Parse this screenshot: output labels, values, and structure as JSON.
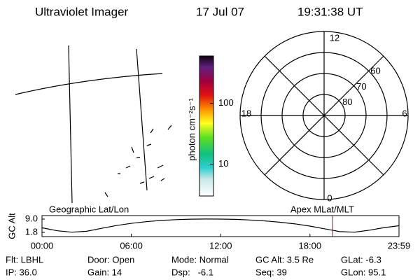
{
  "header": {
    "title": "Ultraviolet Imager",
    "date": "17 Jul 07",
    "time": "19:31:38 UT"
  },
  "map_label": "Geographic Lat/Lon",
  "colorbar": {
    "label": "photon cm⁻²s⁻¹",
    "log": true,
    "lim": [
      3,
      600
    ],
    "ticks": [
      10,
      100
    ]
  },
  "polar": {
    "label": "Apex MLat/MLT",
    "mlt_labels": [
      "12",
      "18",
      "6",
      "0"
    ],
    "lat_labels": [
      60,
      70,
      80
    ]
  },
  "chart_data": {
    "type": "line",
    "ylabel": "GC Alt",
    "x": [
      0,
      1,
      2,
      3,
      4,
      5,
      6,
      7,
      8,
      9,
      10,
      11,
      12,
      13,
      14,
      15,
      16,
      17,
      18,
      19,
      20,
      21,
      22,
      23,
      23.98
    ],
    "values": [
      4.3,
      2.7,
      1.9,
      2.4,
      4.0,
      5.5,
      6.7,
      7.6,
      8.3,
      8.7,
      8.95,
      9.05,
      9.0,
      8.85,
      8.5,
      8.0,
      7.3,
      6.4,
      5.2,
      3.7,
      2.2,
      1.9,
      3.0,
      4.4,
      5.4
    ],
    "color": "#000000",
    "current_time": 19.53,
    "current_color": "#cc0000",
    "xlim": [
      0,
      23.98
    ],
    "xticks": [
      {
        "value": 0,
        "label": "00:00"
      },
      {
        "value": 6,
        "label": "06:00"
      },
      {
        "value": 12,
        "label": "12:00"
      },
      {
        "value": 18,
        "label": "18:00"
      },
      {
        "value": 23.98,
        "label": "23:59"
      }
    ],
    "ylim": [
      -0.5,
      10.9
    ],
    "yticks": [
      1.8,
      {
        "value": 9,
        "label": "9.0"
      }
    ]
  },
  "footer": {
    "rows": [
      [
        "Flt: LBHL",
        "Door: Open",
        "Mode: Normal",
        "GC Alt: 3.5 Re",
        "GLat: -6.3"
      ],
      [
        "IP: 36.0",
        "Gain: 14",
        "Dsp:   -6.1",
        "Seq: 39",
        "GLon: 95.1"
      ]
    ]
  }
}
